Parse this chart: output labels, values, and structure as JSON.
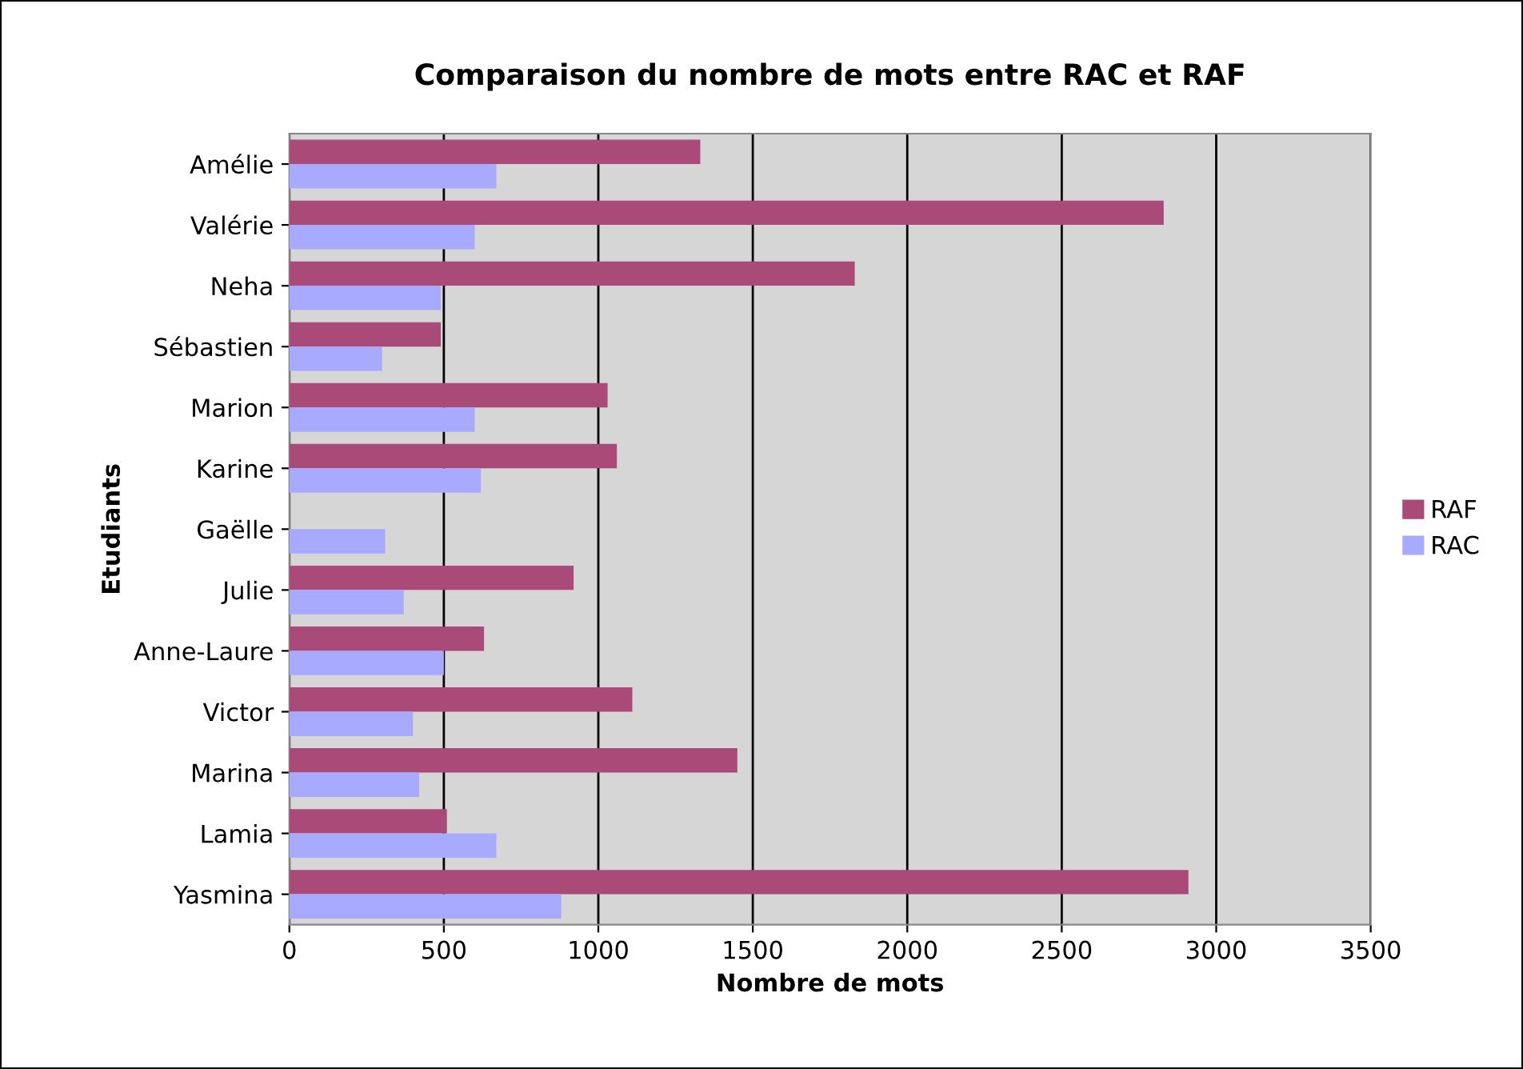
{
  "chart_data": {
    "type": "bar",
    "orientation": "horizontal",
    "title": "Comparaison du nombre de mots entre RAC et RAF",
    "xlabel": "Nombre de mots",
    "ylabel": "Etudiants",
    "categories": [
      "Amélie",
      "Valérie",
      "Neha",
      "Sébastien",
      "Marion",
      "Karine",
      "Gaëlle",
      "Julie",
      "Anne-Laure",
      "Victor",
      "Marina",
      "Lamia",
      "Yasmina"
    ],
    "series": [
      {
        "name": "RAF",
        "color": "#a94a78",
        "values": [
          1330,
          2830,
          1830,
          490,
          1030,
          1060,
          null,
          920,
          630,
          1110,
          1450,
          510,
          2910
        ]
      },
      {
        "name": "RAC",
        "color": "#a8aaff",
        "values": [
          670,
          600,
          490,
          300,
          600,
          620,
          310,
          370,
          500,
          400,
          420,
          670,
          880
        ]
      }
    ],
    "xlim": [
      0,
      3500
    ],
    "xticks": [
      0,
      500,
      1000,
      1500,
      2000,
      2500,
      3000,
      3500
    ],
    "grid": "x",
    "legend": "right"
  }
}
